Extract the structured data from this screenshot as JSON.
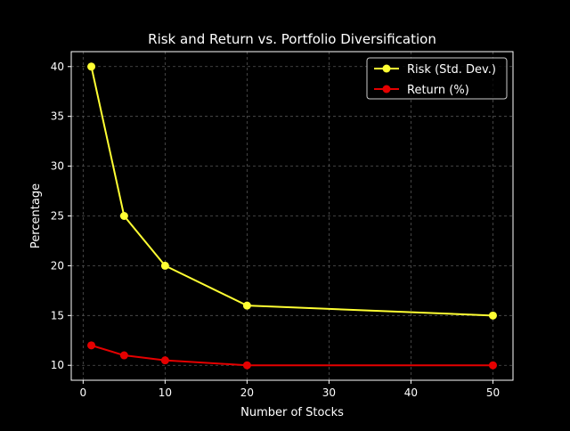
{
  "chart_data": {
    "type": "line",
    "title": "Risk and Return vs. Portfolio Diversification",
    "xlabel": "Number of Stocks",
    "ylabel": "Percentage",
    "x": [
      1,
      5,
      10,
      20,
      50
    ],
    "xlim": [
      -1.45,
      52.45
    ],
    "ylim": [
      8.5,
      41.5
    ],
    "xticks": [
      0,
      10,
      20,
      30,
      40,
      50
    ],
    "yticks": [
      10,
      15,
      20,
      25,
      30,
      35,
      40
    ],
    "xtick_labels": [
      "0",
      "10",
      "20",
      "30",
      "40",
      "50"
    ],
    "ytick_labels": [
      "10",
      "15",
      "20",
      "25",
      "30",
      "35",
      "40"
    ],
    "grid": true,
    "legend_position": "top-right",
    "series": [
      {
        "name": "Risk (Std. Dev.)",
        "values": [
          40,
          25,
          20,
          16,
          15
        ],
        "color": "#ffff33"
      },
      {
        "name": "Return (%)",
        "values": [
          12,
          11,
          10.5,
          10,
          10
        ],
        "color": "#e50000"
      }
    ],
    "colors": {
      "background": "#000000",
      "text": "#ffffff",
      "grid": "#555555"
    }
  }
}
